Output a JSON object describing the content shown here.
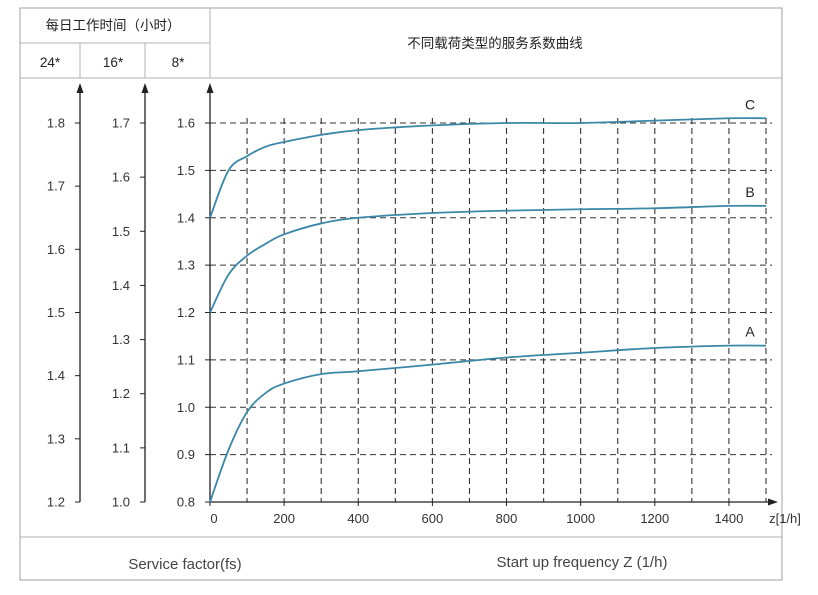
{
  "header": {
    "hours_title": "每日工作时间（小时）",
    "hours_24": "24*",
    "hours_16": "16*",
    "hours_8": "8*",
    "chart_title": "不同载荷类型的服务系数曲线"
  },
  "footer": {
    "left_label": "Service factor(fs)",
    "right_label": "Start up frequency Z (1/h)"
  },
  "colors": {
    "curve": "#3a87a8",
    "border": "#b0b0b0",
    "axis": "#222222",
    "grid": "#333333"
  },
  "chart_data": {
    "type": "line",
    "title": "不同载荷类型的服务系数曲线",
    "xlabel": "z[1/h]",
    "xlim": [
      0,
      1500
    ],
    "x_ticks": [
      "0",
      "200",
      "400",
      "600",
      "800",
      "1000",
      "1200",
      "1400"
    ],
    "ylim": [
      0.8,
      1.6
    ],
    "grid": true,
    "y_axes": [
      {
        "name": "24*",
        "ticks": [
          "1.2",
          "1.3",
          "1.4",
          "1.5",
          "1.6",
          "1.7",
          "1.8"
        ]
      },
      {
        "name": "16*",
        "ticks": [
          "1.0",
          "1.1",
          "1.2",
          "1.3",
          "1.4",
          "1.5",
          "1.6",
          "1.7"
        ]
      },
      {
        "name": "8*",
        "ticks": [
          "0.8",
          "0.9",
          "1.0",
          "1.1",
          "1.2",
          "1.3",
          "1.4",
          "1.5",
          "1.6"
        ]
      }
    ],
    "series": [
      {
        "name": "A",
        "x": [
          0,
          50,
          100,
          150,
          200,
          300,
          400,
          600,
          800,
          1000,
          1200,
          1400,
          1500
        ],
        "y": [
          0.8,
          0.91,
          0.99,
          1.03,
          1.05,
          1.07,
          1.076,
          1.09,
          1.105,
          1.115,
          1.125,
          1.13,
          1.13
        ]
      },
      {
        "name": "B",
        "x": [
          0,
          50,
          100,
          150,
          200,
          300,
          400,
          600,
          800,
          1000,
          1200,
          1400,
          1500
        ],
        "y": [
          1.2,
          1.28,
          1.32,
          1.345,
          1.365,
          1.388,
          1.4,
          1.41,
          1.415,
          1.418,
          1.42,
          1.425,
          1.425
        ]
      },
      {
        "name": "C",
        "x": [
          0,
          50,
          100,
          150,
          200,
          300,
          400,
          600,
          800,
          1000,
          1200,
          1400,
          1500
        ],
        "y": [
          1.4,
          1.5,
          1.53,
          1.55,
          1.56,
          1.575,
          1.585,
          1.595,
          1.6,
          1.6,
          1.605,
          1.61,
          1.61
        ]
      }
    ]
  }
}
